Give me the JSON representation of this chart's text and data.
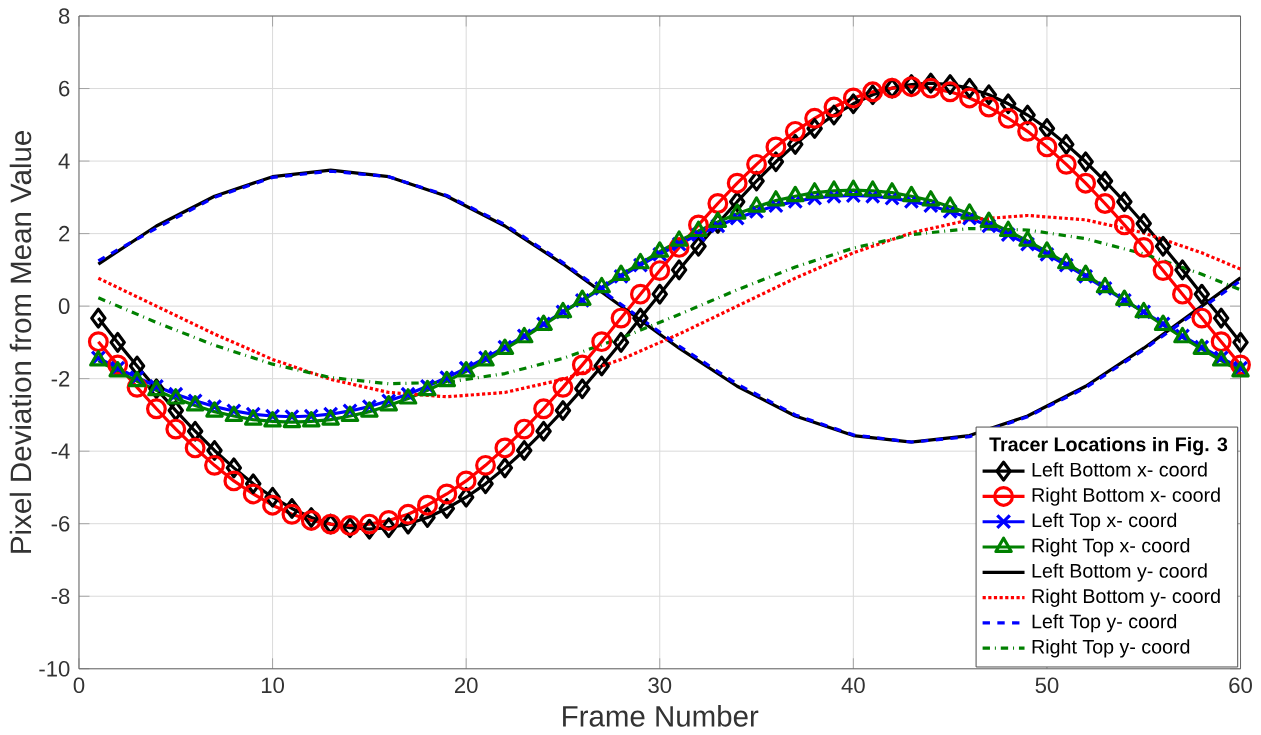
{
  "chart_data": {
    "type": "line",
    "xlabel": "Frame Number",
    "ylabel": "Pixel Deviation from Mean Value",
    "legend_title": "Tracer Locations in Fig. 3",
    "legend": "bottom right",
    "grid": true,
    "xlim": [
      0,
      60
    ],
    "ylim": [
      -10,
      8
    ],
    "xticks": [
      0,
      10,
      20,
      30,
      40,
      50,
      60
    ],
    "yticks": [
      -10,
      -8,
      -6,
      -4,
      -2,
      0,
      2,
      4,
      6,
      8
    ],
    "x": [
      1,
      2,
      3,
      4,
      5,
      6,
      7,
      8,
      9,
      10,
      11,
      12,
      13,
      14,
      15,
      16,
      17,
      18,
      19,
      20,
      21,
      22,
      23,
      24,
      25,
      26,
      27,
      28,
      29,
      30,
      31,
      32,
      33,
      34,
      35,
      36,
      37,
      38,
      39,
      40,
      41,
      42,
      43,
      44,
      45,
      46,
      47,
      48,
      49,
      50,
      51,
      52,
      53,
      54,
      55,
      56,
      57,
      58,
      59,
      60
    ],
    "series": [
      {
        "name": "Left Bottom x- coord",
        "color": "#000000",
        "marker": "diamond",
        "line_style": "solid",
        "values": [
          -0.33,
          -1.0,
          -1.65,
          -2.28,
          -2.88,
          -3.45,
          -3.98,
          -4.46,
          -4.9,
          -5.27,
          -5.58,
          -5.83,
          -6.01,
          -6.11,
          -6.15,
          -6.11,
          -6.01,
          -5.83,
          -5.58,
          -5.27,
          -4.9,
          -4.46,
          -3.98,
          -3.45,
          -2.88,
          -2.28,
          -1.65,
          -1.0,
          -0.33,
          0.33,
          1.0,
          1.65,
          2.28,
          2.88,
          3.45,
          3.98,
          4.46,
          4.9,
          5.27,
          5.58,
          5.83,
          6.01,
          6.11,
          6.15,
          6.11,
          6.01,
          5.83,
          5.58,
          5.27,
          4.9,
          4.46,
          3.98,
          3.45,
          2.88,
          2.28,
          1.65,
          1.0,
          0.33,
          -0.33,
          -1.0
        ]
      },
      {
        "name": "Right Bottom x- coord",
        "color": "#ff0000",
        "marker": "circle",
        "line_style": "solid",
        "values": [
          -0.98,
          -1.62,
          -2.24,
          -2.83,
          -3.39,
          -3.91,
          -4.39,
          -4.82,
          -5.18,
          -5.49,
          -5.74,
          -5.91,
          -6.01,
          -6.05,
          -6.01,
          -5.91,
          -5.74,
          -5.49,
          -5.18,
          -4.82,
          -4.39,
          -3.91,
          -3.39,
          -2.83,
          -2.24,
          -1.62,
          -0.98,
          -0.33,
          0.33,
          0.98,
          1.62,
          2.24,
          2.83,
          3.39,
          3.91,
          4.39,
          4.82,
          5.18,
          5.49,
          5.74,
          5.91,
          6.01,
          6.05,
          6.01,
          5.91,
          5.74,
          5.49,
          5.18,
          4.82,
          4.39,
          3.91,
          3.39,
          2.83,
          2.24,
          1.62,
          0.98,
          0.33,
          -0.33,
          -0.98,
          -1.62
        ]
      },
      {
        "name": "Left Top x- coord",
        "color": "#0000ff",
        "marker": "cross",
        "line_style": "solid",
        "values": [
          -1.43,
          -1.71,
          -1.97,
          -2.21,
          -2.43,
          -2.61,
          -2.77,
          -2.89,
          -2.98,
          -3.03,
          -3.05,
          -3.03,
          -2.98,
          -2.89,
          -2.77,
          -2.61,
          -2.43,
          -2.21,
          -1.97,
          -1.71,
          -1.43,
          -1.13,
          -0.82,
          -0.49,
          -0.16,
          0.16,
          0.49,
          0.82,
          1.13,
          1.43,
          1.71,
          1.97,
          2.21,
          2.43,
          2.61,
          2.77,
          2.89,
          2.98,
          3.03,
          3.05,
          3.03,
          2.98,
          2.89,
          2.77,
          2.61,
          2.43,
          2.21,
          1.97,
          1.71,
          1.43,
          1.13,
          0.82,
          0.49,
          0.16,
          -0.16,
          -0.49,
          -0.82,
          -1.13,
          -1.43,
          -1.71
        ]
      },
      {
        "name": "Right Top x- coord",
        "color": "#008000",
        "marker": "triangle",
        "line_style": "solid",
        "values": [
          -1.5,
          -1.8,
          -2.07,
          -2.32,
          -2.55,
          -2.74,
          -2.91,
          -3.03,
          -3.13,
          -3.18,
          -3.2,
          -3.18,
          -3.13,
          -3.03,
          -2.91,
          -2.74,
          -2.55,
          -2.32,
          -2.07,
          -1.8,
          -1.5,
          -1.18,
          -0.86,
          -0.52,
          -0.17,
          0.17,
          0.52,
          0.86,
          1.18,
          1.5,
          1.8,
          2.07,
          2.32,
          2.55,
          2.74,
          2.91,
          3.03,
          3.13,
          3.18,
          3.2,
          3.18,
          3.13,
          3.03,
          2.91,
          2.74,
          2.55,
          2.32,
          2.07,
          1.8,
          1.5,
          1.18,
          0.86,
          0.52,
          0.17,
          -0.17,
          -0.52,
          -0.86,
          -1.18,
          -1.5,
          -1.8
        ]
      },
      {
        "name": "Left Bottom y- coord",
        "color": "#000000",
        "marker": "none",
        "line_style": "solid",
        "x": [
          1,
          4,
          7,
          10,
          13,
          16,
          19,
          22,
          25,
          28,
          31,
          34,
          37,
          40,
          43,
          46,
          49,
          52,
          55,
          58,
          60
        ],
        "values": [
          1.16,
          2.21,
          3.03,
          3.57,
          3.75,
          3.57,
          3.03,
          2.21,
          1.16,
          0,
          -1.16,
          -2.21,
          -3.03,
          -3.57,
          -3.75,
          -3.57,
          -3.03,
          -2.21,
          -1.16,
          0,
          0.78
        ]
      },
      {
        "name": "Right Bottom y- coord",
        "color": "#ff0000",
        "marker": "none",
        "line_style": "dotted",
        "x": [
          1,
          4,
          7,
          10,
          13,
          16,
          19,
          22,
          25,
          28,
          31,
          34,
          37,
          40,
          43,
          46,
          49,
          52,
          55,
          58,
          60
        ],
        "values": [
          0.77,
          0,
          -0.77,
          -1.47,
          -2.02,
          -2.38,
          -2.5,
          -2.38,
          -2.02,
          -1.47,
          -0.77,
          0,
          0.77,
          1.47,
          2.02,
          2.38,
          2.5,
          2.38,
          2.02,
          1.47,
          1.02
        ]
      },
      {
        "name": "Left Top y- coord",
        "color": "#0000ff",
        "marker": "none",
        "line_style": "dashed",
        "x": [
          1,
          4,
          7,
          10,
          13,
          16,
          19,
          22,
          25,
          28,
          31,
          34,
          37,
          40,
          43,
          46,
          49,
          52,
          55,
          58,
          60
        ],
        "values": [
          1.25,
          2.15,
          3.0,
          3.55,
          3.72,
          3.57,
          3.05,
          2.25,
          1.2,
          0.05,
          -1.1,
          -2.15,
          -3.0,
          -3.55,
          -3.75,
          -3.6,
          -3.05,
          -2.25,
          -1.2,
          -0.05,
          0.7
        ]
      },
      {
        "name": "Right Top y- coord",
        "color": "#008000",
        "marker": "none",
        "line_style": "dashdot",
        "x": [
          1,
          4,
          7,
          10,
          13,
          16,
          19,
          22,
          25,
          28,
          31,
          34,
          37,
          40,
          43,
          46,
          49,
          52,
          55,
          58,
          60
        ],
        "values": [
          0.23,
          -0.45,
          -1.08,
          -1.6,
          -1.97,
          -2.14,
          -2.1,
          -1.86,
          -1.44,
          -0.88,
          -0.23,
          0.45,
          1.08,
          1.6,
          1.97,
          2.14,
          2.1,
          1.86,
          1.44,
          0.88,
          0.45
        ]
      }
    ]
  }
}
